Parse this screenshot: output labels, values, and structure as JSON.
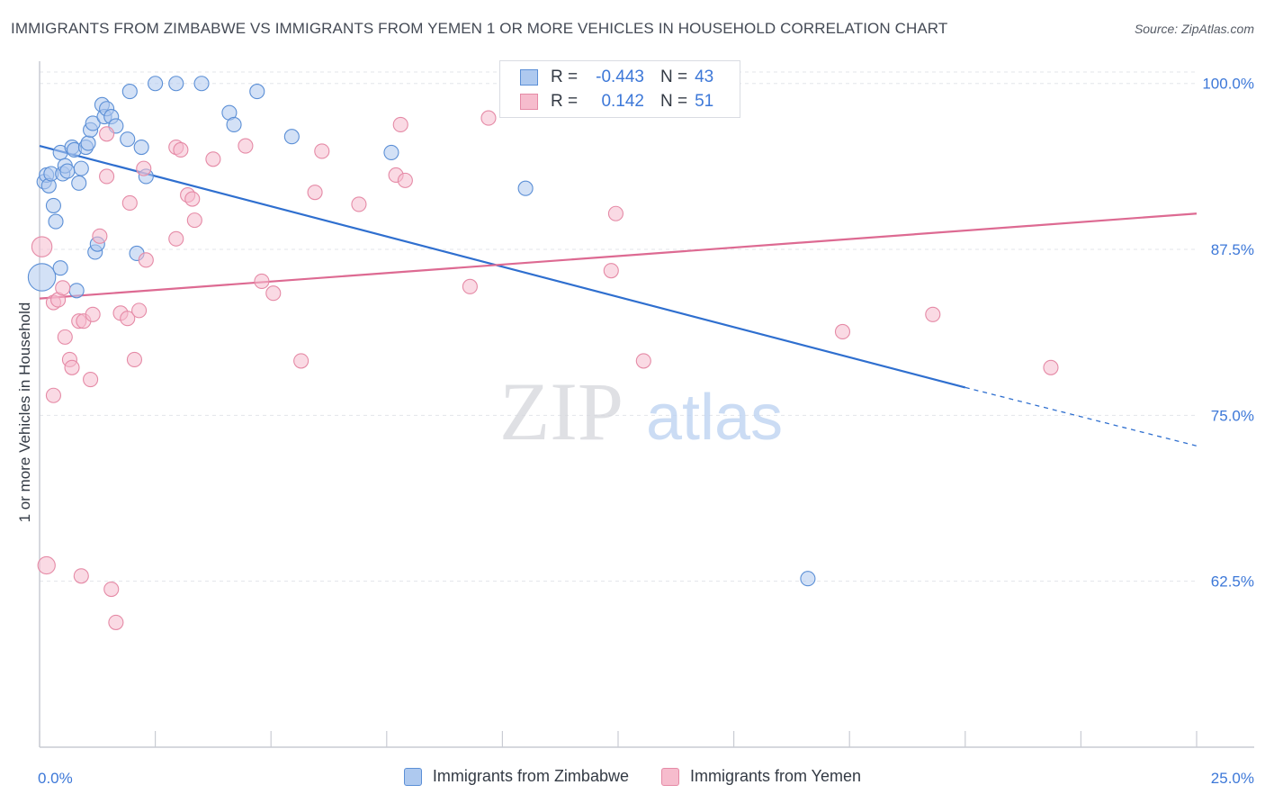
{
  "header": {
    "title": "IMMIGRANTS FROM ZIMBABWE VS IMMIGRANTS FROM YEMEN 1 OR MORE VEHICLES IN HOUSEHOLD CORRELATION CHART",
    "source": "Source: ZipAtlas.com"
  },
  "watermark": {
    "zip": "ZIP",
    "atlas": "atlas"
  },
  "legend": {
    "r_label": "R =",
    "n_label": "N =",
    "rows": [
      {
        "r": "-0.443",
        "n": "43"
      },
      {
        "r": "0.142",
        "n": "51"
      }
    ]
  },
  "colors": {
    "zimbabwe_fill": "#aec9ef",
    "zimbabwe_stroke": "#5b8fd6",
    "zimbabwe_line": "#2f6fcf",
    "yemen_fill": "#f6bccd",
    "yemen_stroke": "#e58aa6",
    "yemen_line": "#dd6a92",
    "tick_label": "#3d78d8",
    "grid": "#e3e5ea"
  },
  "chart_data": {
    "type": "scatter",
    "title": "IMMIGRANTS FROM ZIMBABWE VS IMMIGRANTS FROM YEMEN 1 OR MORE VEHICLES IN HOUSEHOLD CORRELATION CHART",
    "xlabel": "",
    "ylabel": "1 or more Vehicles in Household",
    "xlim": [
      0,
      25
    ],
    "ylim": [
      50,
      101
    ],
    "x_tick_labels": [
      "0.0%",
      "25.0%"
    ],
    "y_ticks": [
      62.5,
      75.0,
      87.5,
      100.0
    ],
    "y_tick_labels": [
      "62.5%",
      "75.0%",
      "87.5%",
      "100.0%"
    ],
    "grid": true,
    "legend_position": "top-center",
    "series": [
      {
        "name": "Immigrants from Zimbabwe",
        "r": -0.443,
        "n": 43,
        "trend": {
          "x": [
            0,
            20,
            25
          ],
          "y": [
            95.3,
            77.1,
            72.7
          ],
          "solid_until_x": 20
        },
        "points": [
          [
            0.05,
            85.4,
            1.9
          ],
          [
            0.1,
            92.6,
            1
          ],
          [
            0.15,
            93.1,
            1
          ],
          [
            0.2,
            92.3,
            1
          ],
          [
            0.25,
            93.2,
            1
          ],
          [
            0.3,
            90.8,
            1
          ],
          [
            0.35,
            89.6,
            1
          ],
          [
            0.45,
            86.1,
            1
          ],
          [
            0.45,
            94.8,
            1
          ],
          [
            0.5,
            93.2,
            1
          ],
          [
            0.55,
            93.8,
            1
          ],
          [
            0.6,
            93.4,
            1
          ],
          [
            0.7,
            95.2,
            1
          ],
          [
            0.75,
            95.0,
            1
          ],
          [
            0.8,
            84.4,
            1
          ],
          [
            0.85,
            92.5,
            1
          ],
          [
            0.9,
            93.6,
            1
          ],
          [
            1.0,
            95.2,
            1
          ],
          [
            1.05,
            95.5,
            1
          ],
          [
            1.1,
            96.5,
            1
          ],
          [
            1.15,
            97.0,
            1
          ],
          [
            1.2,
            87.3,
            1
          ],
          [
            1.25,
            87.9,
            1
          ],
          [
            1.35,
            98.4,
            1
          ],
          [
            1.4,
            97.5,
            1
          ],
          [
            1.45,
            98.1,
            1
          ],
          [
            1.55,
            97.5,
            1
          ],
          [
            1.65,
            96.8,
            1
          ],
          [
            1.9,
            95.8,
            1
          ],
          [
            1.95,
            99.4,
            1
          ],
          [
            2.1,
            87.2,
            1
          ],
          [
            2.2,
            95.2,
            1
          ],
          [
            2.3,
            93.0,
            1
          ],
          [
            2.5,
            100.0,
            1
          ],
          [
            2.95,
            100.0,
            1
          ],
          [
            3.5,
            100.0,
            1
          ],
          [
            4.1,
            97.8,
            1
          ],
          [
            4.2,
            96.9,
            1
          ],
          [
            4.7,
            99.4,
            1
          ],
          [
            5.45,
            96.0,
            1
          ],
          [
            7.6,
            94.8,
            1
          ],
          [
            10.5,
            92.1,
            1
          ],
          [
            16.6,
            62.7,
            1
          ]
        ]
      },
      {
        "name": "Immigrants from Yemen",
        "r": 0.142,
        "n": 51,
        "trend": {
          "x": [
            0,
            25
          ],
          "y": [
            83.8,
            90.2
          ]
        },
        "points": [
          [
            0.05,
            87.7,
            1.4
          ],
          [
            0.15,
            63.7,
            1.2
          ],
          [
            0.3,
            76.5,
            1
          ],
          [
            0.3,
            83.5,
            1
          ],
          [
            0.4,
            83.7,
            1
          ],
          [
            0.5,
            84.6,
            1
          ],
          [
            0.55,
            80.9,
            1
          ],
          [
            0.65,
            79.2,
            1
          ],
          [
            0.7,
            78.6,
            1
          ],
          [
            0.85,
            82.1,
            1
          ],
          [
            0.9,
            62.9,
            1
          ],
          [
            0.95,
            82.1,
            1
          ],
          [
            1.1,
            77.7,
            1
          ],
          [
            1.15,
            82.6,
            1
          ],
          [
            1.3,
            88.5,
            1
          ],
          [
            1.45,
            96.2,
            1
          ],
          [
            1.45,
            93.0,
            1
          ],
          [
            1.55,
            61.9,
            1
          ],
          [
            1.65,
            59.4,
            1
          ],
          [
            1.75,
            82.7,
            1
          ],
          [
            1.9,
            82.3,
            1
          ],
          [
            1.95,
            91.0,
            1
          ],
          [
            2.05,
            79.2,
            1
          ],
          [
            2.15,
            82.9,
            1
          ],
          [
            2.25,
            93.6,
            1
          ],
          [
            2.3,
            86.7,
            1
          ],
          [
            2.95,
            95.2,
            1
          ],
          [
            2.95,
            88.3,
            1
          ],
          [
            3.05,
            95.0,
            1
          ],
          [
            3.2,
            91.6,
            1
          ],
          [
            3.3,
            91.3,
            1
          ],
          [
            3.35,
            89.7,
            1
          ],
          [
            3.75,
            94.3,
            1
          ],
          [
            4.45,
            95.3,
            1
          ],
          [
            4.8,
            85.1,
            1
          ],
          [
            5.05,
            84.2,
            1
          ],
          [
            5.65,
            79.1,
            1
          ],
          [
            5.95,
            91.8,
            1
          ],
          [
            6.1,
            94.9,
            1
          ],
          [
            6.9,
            90.9,
            1
          ],
          [
            7.7,
            93.1,
            1
          ],
          [
            7.8,
            96.9,
            1
          ],
          [
            7.9,
            92.7,
            1
          ],
          [
            9.3,
            84.7,
            1
          ],
          [
            9.7,
            97.4,
            1
          ],
          [
            12.35,
            85.9,
            1
          ],
          [
            12.45,
            90.2,
            1
          ],
          [
            13.05,
            79.1,
            1
          ],
          [
            17.35,
            81.3,
            1
          ],
          [
            19.3,
            82.6,
            1
          ],
          [
            21.85,
            78.6,
            1
          ]
        ]
      }
    ]
  },
  "bottom_legend": [
    {
      "label": "Immigrants from Zimbabwe"
    },
    {
      "label": "Immigrants from Yemen"
    }
  ]
}
